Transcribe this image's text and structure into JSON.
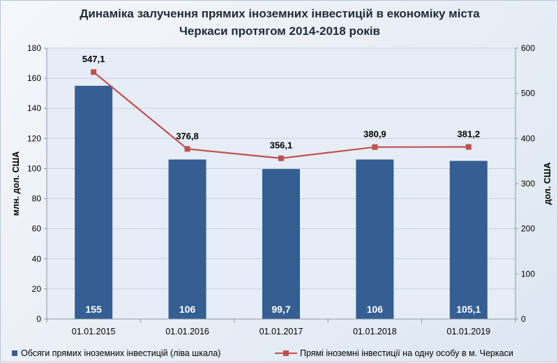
{
  "chart_data": {
    "type": "bar",
    "title": [
      "Динаміка залучення прямих іноземних інвестицій в економіку міста",
      "Черкаси протягом 2014-2018 років"
    ],
    "categories": [
      "01.01.2015",
      "01.01.2016",
      "01.01.2017",
      "01.01.2018",
      "01.01.2019"
    ],
    "series": [
      {
        "name": "Обсяги прямих іноземних інвестицій (ліва шкала)",
        "type": "bar",
        "axis": "left",
        "color": "#355e92",
        "values": [
          155,
          106,
          99.7,
          106,
          105.1
        ],
        "labels": [
          "155",
          "106",
          "99,7",
          "106",
          "105,1"
        ]
      },
      {
        "name": "Прямі іноземні інвестиції на одну особу в м. Черкаси",
        "type": "line",
        "axis": "right",
        "color": "#c0504d",
        "values": [
          547.1,
          376.8,
          356.1,
          380.9,
          381.2
        ],
        "labels": [
          "547,1",
          "376,8",
          "356,1",
          "380,9",
          "381,2"
        ]
      }
    ],
    "ylabel_left": "млн. дол. США",
    "ylabel_right": "дол. США",
    "ylim_left": [
      0,
      180
    ],
    "yticks_left": [
      "0",
      "20",
      "40",
      "60",
      "80",
      "100",
      "120",
      "140",
      "160",
      "180"
    ],
    "ylim_right": [
      0,
      600
    ],
    "yticks_right": [
      "0",
      "100",
      "200",
      "300",
      "400",
      "500",
      "600"
    ],
    "grid": true,
    "legend_position": "bottom"
  }
}
